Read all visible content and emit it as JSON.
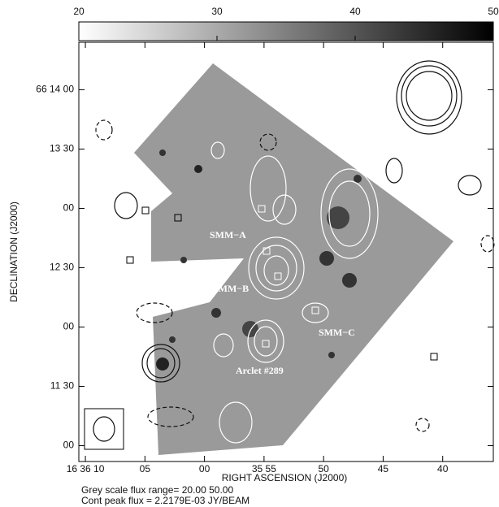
{
  "chart_data": {
    "type": "image",
    "colorbar": {
      "lim": [
        20,
        50
      ],
      "ticks": [
        20,
        30,
        40,
        50
      ]
    },
    "xlabel": "RIGHT ASCENSION (J2000)",
    "ylabel": "DECLINATION (J2000)",
    "xlim": [
      59770.55,
      59735.75
    ],
    "xticks": [
      {
        "value": 59770,
        "label": "16 36 10"
      },
      {
        "value": 59765,
        "label": "05"
      },
      {
        "value": 59760,
        "label": "00"
      },
      {
        "value": 59755,
        "label": "35 55"
      },
      {
        "value": 59750,
        "label": "50"
      },
      {
        "value": 59745,
        "label": "45"
      },
      {
        "value": 59740,
        "label": "40"
      }
    ],
    "ylim": [
      238252,
      238464
    ],
    "yticks": [
      {
        "value": 238440,
        "label": "66 14 00"
      },
      {
        "value": 238410,
        "label": "13 30"
      },
      {
        "value": 238380,
        "label": "00"
      },
      {
        "value": 238350,
        "label": "12 30"
      },
      {
        "value": 238320,
        "label": "00"
      },
      {
        "value": 238290,
        "label": "11 30"
      },
      {
        "value": 238260,
        "label": "00"
      }
    ],
    "annotations": [
      "SMM−A",
      "SMM−B",
      "SMM−C",
      "Arclet #289"
    ],
    "footer": [
      "Grey scale flux range= 20.00 50.00",
      "Cont peak flux =  2.2179E-03 JY/BEAM"
    ]
  }
}
